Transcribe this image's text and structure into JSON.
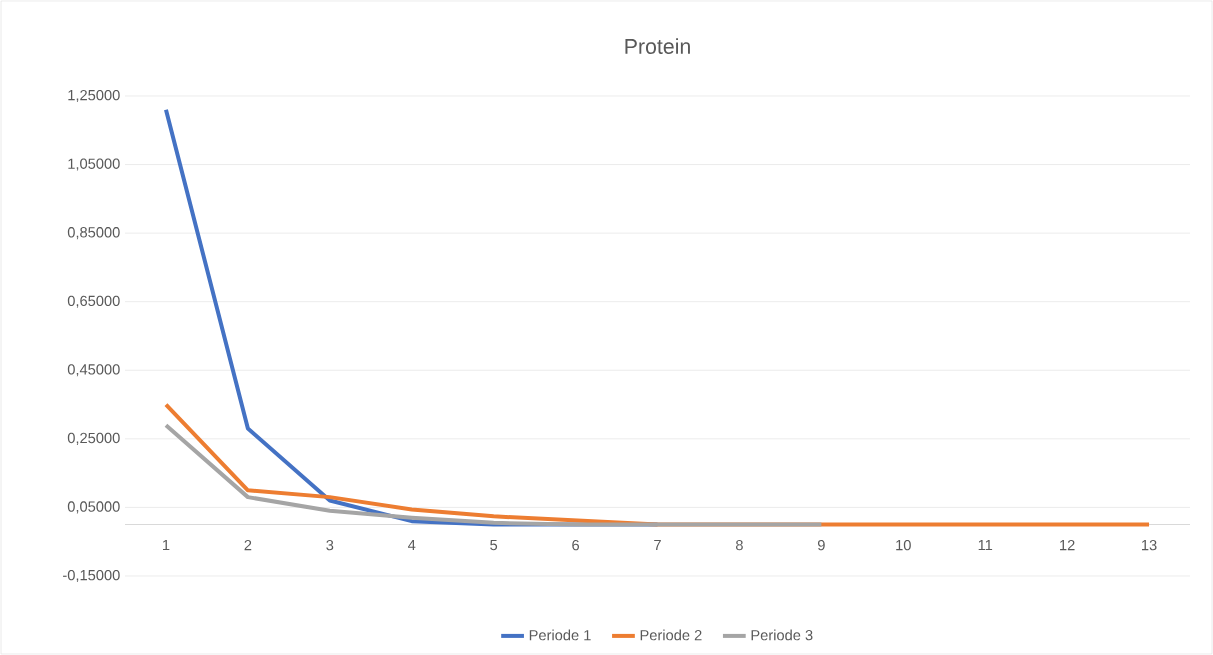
{
  "chart_data": {
    "type": "line",
    "title": "Protein",
    "categories": [
      "1",
      "2",
      "3",
      "4",
      "5",
      "6",
      "7",
      "8",
      "9",
      "10",
      "11",
      "12",
      "13"
    ],
    "series": [
      {
        "name": "Periode 1",
        "color": "#4472c4",
        "values": [
          1.21,
          0.28,
          0.07,
          0.01,
          0,
          0,
          0,
          null,
          null,
          null,
          null,
          null,
          null
        ]
      },
      {
        "name": "Periode 2",
        "color": "#ed7d31",
        "values": [
          0.35,
          0.1,
          0.08,
          0.044,
          0.024,
          0.012,
          0,
          0,
          0,
          0,
          0,
          0,
          0
        ]
      },
      {
        "name": "Periode 3",
        "color": "#a5a5a5",
        "values": [
          0.29,
          0.08,
          0.04,
          0.02,
          0.005,
          0,
          0,
          0,
          0,
          null,
          null,
          null,
          null
        ]
      }
    ],
    "ylim": [
      -0.15,
      1.25
    ],
    "yticks": [
      {
        "value": -0.15,
        "label": "-0,15000"
      },
      {
        "value": 0.05,
        "label": "0,05000"
      },
      {
        "value": 0.25,
        "label": "0,25000"
      },
      {
        "value": 0.45,
        "label": "0,45000"
      },
      {
        "value": 0.65,
        "label": "0,65000"
      },
      {
        "value": 0.85,
        "label": "0,85000"
      },
      {
        "value": 1.05,
        "label": "1,05000"
      },
      {
        "value": 1.25,
        "label": "1,25000"
      }
    ],
    "grid": "y",
    "legend": "bottom"
  }
}
